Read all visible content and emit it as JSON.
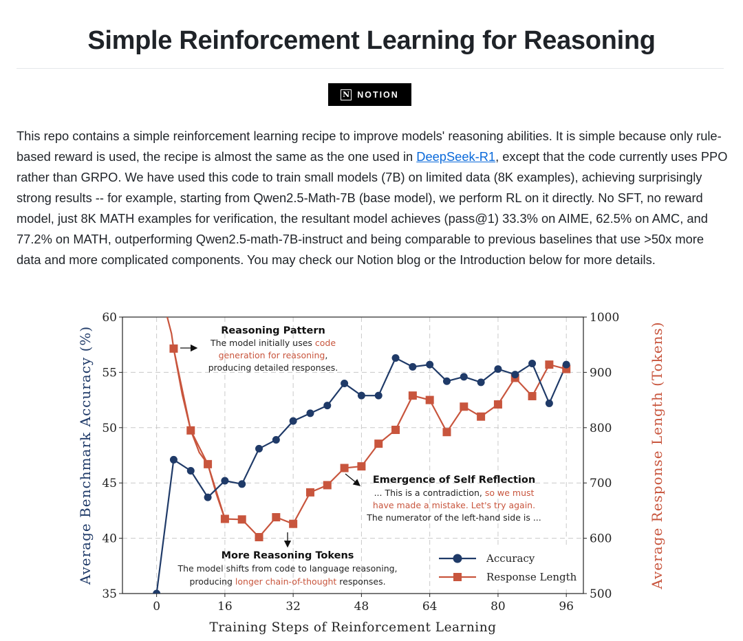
{
  "page": {
    "title": "Simple Reinforcement Learning for Reasoning",
    "badge": {
      "icon": "notion-logo-icon",
      "logo_letter": "N",
      "label": "NOTION"
    },
    "intro": {
      "part1": "This repo contains a simple reinforcement learning recipe to improve models' reasoning abilities. It is simple because only rule-based reward is used, the recipe is almost the same as the one used in ",
      "link": "DeepSeek-R1",
      "part2": ", except that the code currently uses PPO rather than GRPO. We have used this code to train small models (7B) on limited data (8K examples), achieving surprisingly strong results -- for example, starting from Qwen2.5-Math-7B (base model), we perform RL on it directly. No SFT, no reward model, just 8K MATH examples for verification, the resultant model achieves (pass@1) 33.3% on AIME, 62.5% on AMC, and 77.2% on MATH, outperforming Qwen2.5-math-7B-instruct and being comparable to previous baselines that use >50x more data and more complicated components. You may check our Notion blog or the Introduction below for more details."
    }
  },
  "colors": {
    "accuracy": "#1f3a68",
    "length": "#c8553d",
    "grid": "#c8c8c8",
    "annotation_red": "#c8553d"
  },
  "chart_data": {
    "type": "line",
    "xlabel": "Training Steps of Reinforcement Learning",
    "ylabel_left": "Average Benchmark Accuracy (%)",
    "ylabel_right": "Average Response Length (Tokens)",
    "xlim": [
      -8,
      100
    ],
    "ylim_left": [
      35,
      60
    ],
    "ylim_right": [
      500,
      1000
    ],
    "x_ticks": [
      "0",
      "16",
      "32",
      "48",
      "64",
      "80",
      "96"
    ],
    "y_ticks_left": [
      "35",
      "40",
      "45",
      "50",
      "55",
      "60"
    ],
    "y_ticks_right": [
      "500",
      "600",
      "700",
      "800",
      "900",
      "1000"
    ],
    "grid": true,
    "legend_position": "bottom-right",
    "series": [
      {
        "name": "Accuracy",
        "axis": "left",
        "marker": "circle",
        "x": [
          0,
          4,
          8,
          12,
          16,
          20,
          24,
          28,
          32,
          36,
          40,
          44,
          48,
          52,
          56,
          60,
          64,
          68,
          72,
          76,
          80,
          84,
          88,
          92,
          96
        ],
        "values": [
          35.0,
          47.1,
          46.1,
          43.7,
          45.2,
          44.9,
          48.1,
          48.9,
          50.6,
          51.3,
          52.0,
          54.0,
          52.9,
          52.9,
          56.3,
          55.5,
          55.7,
          54.2,
          54.6,
          54.1,
          55.3,
          54.8,
          55.8,
          52.2,
          55.7
        ]
      },
      {
        "name": "Response Length",
        "axis": "right",
        "marker": "square",
        "x": [
          4,
          8,
          12,
          16,
          20,
          24,
          28,
          32,
          36,
          40,
          44,
          48,
          52,
          56,
          60,
          64,
          68,
          72,
          76,
          80,
          84,
          88,
          92,
          96
        ],
        "values": [
          943,
          795,
          734,
          635,
          634,
          602,
          638,
          626,
          683,
          696,
          727,
          730,
          771,
          796,
          858,
          850,
          792,
          838,
          820,
          842,
          890,
          857,
          914,
          906
        ],
        "initial_curve": {
          "x": [
            2.5,
            3.5,
            4,
            6,
            8,
            10,
            12,
            14,
            16
          ],
          "values": [
            1000,
            970,
            943,
            860,
            795,
            755,
            734,
            680,
            635
          ]
        }
      }
    ],
    "annotations": {
      "reasoning_pattern": {
        "title": "Reasoning Pattern",
        "l1": "The model initially uses ",
        "l1r": "code",
        "l2r": "generation for reasoning",
        "l2": ",",
        "l3": "producing detailed responses."
      },
      "self_reflection": {
        "title": "Emergence of Self Reflection",
        "l1": "... This is a contradiction, ",
        "l1r": "so we must",
        "l2r": "have made a mistake. Let's try again.",
        "l3": "The numerator of the left-hand side is ..."
      },
      "more_tokens": {
        "title": "More Reasoning Tokens",
        "l1": "The model shifts from code to language reasoning,",
        "l2": "producing ",
        "l2r": "longer chain-of-thought",
        "l2b": " responses."
      }
    }
  }
}
